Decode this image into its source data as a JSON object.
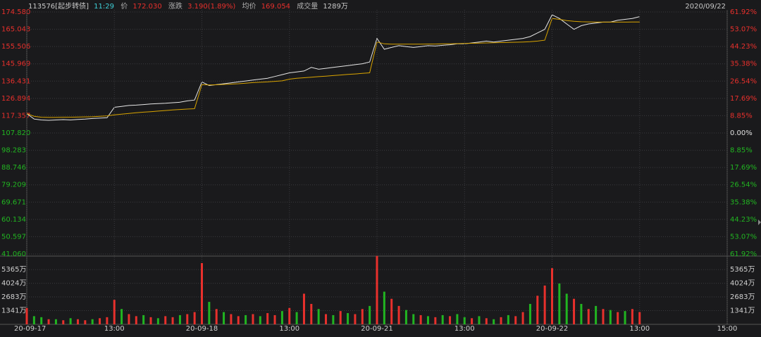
{
  "header": {
    "code": "113576[起步转债]",
    "time": "11:29",
    "price_label": "价",
    "price": "172.030",
    "change_label": "涨跌",
    "change": "3.190(1.89%)",
    "avg_label": "均价",
    "avg": "169.054",
    "volume_label": "成交量",
    "volume": "1289万",
    "date": "2020/09/22"
  },
  "chart_data": [
    {
      "type": "line",
      "xlim": [
        0,
        960
      ],
      "x": [
        0,
        10,
        20,
        30,
        40,
        50,
        60,
        70,
        80,
        90,
        100,
        110,
        120,
        130,
        140,
        150,
        160,
        170,
        180,
        190,
        200,
        210,
        220,
        230,
        240,
        250,
        260,
        270,
        280,
        290,
        300,
        310,
        320,
        330,
        340,
        350,
        360,
        370,
        380,
        390,
        400,
        410,
        420,
        430,
        440,
        450,
        460,
        470,
        480,
        490,
        500,
        510,
        520,
        530,
        540,
        550,
        560,
        570,
        580,
        590,
        600,
        610,
        620,
        630,
        640,
        650,
        660,
        670,
        680,
        690,
        700,
        710,
        720,
        730,
        740,
        750,
        760,
        770,
        780,
        790,
        800,
        810,
        820,
        830,
        840
      ],
      "series": [
        {
          "color": "#e6e6e6",
          "values": [
            118.5,
            115.5,
            115,
            114.8,
            115,
            115.2,
            115,
            115.3,
            115.5,
            115.8,
            116,
            116.2,
            122,
            122.5,
            123,
            123.2,
            123.5,
            123.8,
            124,
            124.2,
            124.5,
            124.8,
            125.5,
            126,
            136,
            134,
            134.5,
            135,
            135.5,
            136,
            136.5,
            137,
            137.5,
            138,
            139,
            140,
            141,
            141.5,
            142,
            144,
            143,
            143.5,
            144,
            144.5,
            145,
            145.5,
            146,
            147,
            160,
            154,
            155,
            156,
            155.5,
            155,
            155.5,
            156,
            155.8,
            156.2,
            156.5,
            157,
            157,
            157.5,
            158,
            158.5,
            158,
            158.5,
            159,
            159.5,
            160,
            161,
            163,
            165,
            173,
            171,
            168,
            165,
            167,
            168,
            168.5,
            169,
            169,
            170,
            170.5,
            171,
            172.03
          ]
        },
        {
          "color": "#d9a400",
          "values": [
            118.5,
            117,
            116.5,
            116.4,
            116.4,
            116.5,
            116.5,
            116.6,
            116.7,
            116.8,
            117,
            117.2,
            117.8,
            118.2,
            118.6,
            119,
            119.3,
            119.6,
            119.9,
            120.2,
            120.5,
            120.8,
            121,
            121.2,
            134.5,
            134.3,
            134.4,
            134.6,
            134.8,
            135,
            135.3,
            135.6,
            135.8,
            136,
            136.3,
            136.6,
            137.5,
            138,
            138.3,
            138.6,
            138.9,
            139.2,
            139.5,
            139.8,
            140.1,
            140.4,
            140.7,
            141,
            158,
            157,
            156.8,
            156.8,
            156.8,
            156.8,
            156.8,
            156.9,
            156.9,
            157,
            157,
            157.1,
            157.2,
            157.3,
            157.4,
            157.5,
            157.6,
            157.7,
            157.8,
            157.9,
            158,
            158.2,
            158.5,
            159,
            171,
            170.5,
            169.8,
            169.4,
            169.2,
            169.1,
            169,
            169,
            169,
            169,
            169,
            169.05,
            169.054
          ]
        }
      ],
      "ylim": [
        41.06,
        174.58
      ],
      "yticks": [
        {
          "value": 174.58,
          "label": "174.580"
        },
        165.043,
        155.506,
        145.969,
        136.431,
        126.894,
        117.357,
        {
          "value": 107.82,
          "label": "107.820"
        },
        98.283,
        88.746,
        79.209,
        69.671,
        60.134,
        50.597,
        {
          "value": 41.06,
          "label": "41.060"
        }
      ],
      "y2lim": [
        -61.92,
        61.92
      ],
      "y2ticks": [
        {
          "value": 61.92,
          "label": "61.92%"
        },
        {
          "value": 53.07,
          "label": "53.07%"
        },
        {
          "value": 44.23,
          "label": "44.23%"
        },
        {
          "value": 35.38,
          "label": "35.38%"
        },
        {
          "value": 26.54,
          "label": "26.54%"
        },
        {
          "value": 17.69,
          "label": "17.69%"
        },
        {
          "value": 8.85,
          "label": "8.85%"
        },
        {
          "value": 0,
          "label": "0.00%"
        },
        {
          "value": -8.85,
          "label": "8.85%"
        },
        {
          "value": -17.69,
          "label": "17.69%"
        },
        {
          "value": -26.54,
          "label": "26.54%"
        },
        {
          "value": -35.38,
          "label": "35.38%"
        },
        {
          "value": -44.23,
          "label": "44.23%"
        },
        {
          "value": -53.07,
          "label": "53.07%"
        },
        {
          "value": -61.92,
          "label": "61.92%"
        }
      ],
      "grid": true
    },
    {
      "type": "bar",
      "xlim": [
        0,
        960
      ],
      "x": [
        0,
        10,
        20,
        30,
        40,
        50,
        60,
        70,
        80,
        90,
        100,
        110,
        120,
        130,
        140,
        150,
        160,
        170,
        180,
        190,
        200,
        210,
        220,
        230,
        240,
        250,
        260,
        270,
        280,
        290,
        300,
        310,
        320,
        330,
        340,
        350,
        360,
        370,
        380,
        390,
        400,
        410,
        420,
        430,
        440,
        450,
        460,
        470,
        480,
        490,
        500,
        510,
        520,
        530,
        540,
        550,
        560,
        570,
        580,
        590,
        600,
        610,
        620,
        630,
        640,
        650,
        660,
        670,
        680,
        690,
        700,
        710,
        720,
        730,
        740,
        750,
        760,
        770,
        780,
        790,
        800,
        810,
        820,
        830,
        840
      ],
      "values": [
        1600,
        800,
        700,
        500,
        500,
        400,
        600,
        500,
        400,
        500,
        600,
        700,
        2400,
        1500,
        1000,
        800,
        900,
        700,
        600,
        800,
        700,
        900,
        1000,
        1200,
        6000,
        2200,
        1500,
        1200,
        1000,
        800,
        900,
        1000,
        800,
        1100,
        900,
        1300,
        1600,
        1200,
        3000,
        2000,
        1500,
        1000,
        900,
        1300,
        1100,
        1000,
        1500,
        1800,
        6700,
        3200,
        2500,
        1800,
        1400,
        1000,
        900,
        800,
        700,
        900,
        800,
        1000,
        700,
        600,
        800,
        600,
        500,
        700,
        900,
        800,
        1200,
        2000,
        2800,
        3800,
        5500,
        4000,
        3000,
        2500,
        2000,
        1500,
        1800,
        1500,
        1400,
        1200,
        1300,
        1500,
        1200
      ],
      "colors": [
        "#e8302c",
        "#21b521",
        "#21b521",
        "#e8302c",
        "#21b521",
        "#e8302c",
        "#21b521",
        "#e8302c",
        "#e8302c",
        "#21b521",
        "#e8302c",
        "#e8302c",
        "#e8302c",
        "#21b521",
        "#e8302c",
        "#e8302c",
        "#21b521",
        "#e8302c",
        "#21b521",
        "#e8302c",
        "#e8302c",
        "#21b521",
        "#e8302c",
        "#e8302c",
        "#e8302c",
        "#21b521",
        "#e8302c",
        "#21b521",
        "#e8302c",
        "#e8302c",
        "#21b521",
        "#e8302c",
        "#21b521",
        "#e8302c",
        "#e8302c",
        "#21b521",
        "#e8302c",
        "#21b521",
        "#e8302c",
        "#e8302c",
        "#21b521",
        "#e8302c",
        "#21b521",
        "#e8302c",
        "#21b521",
        "#e8302c",
        "#e8302c",
        "#21b521",
        "#e8302c",
        "#21b521",
        "#e8302c",
        "#e8302c",
        "#21b521",
        "#21b521",
        "#e8302c",
        "#21b521",
        "#e8302c",
        "#21b521",
        "#e8302c",
        "#21b521",
        "#21b521",
        "#e8302c",
        "#21b521",
        "#e8302c",
        "#21b521",
        "#e8302c",
        "#21b521",
        "#e8302c",
        "#e8302c",
        "#21b521",
        "#e8302c",
        "#e8302c",
        "#e8302c",
        "#21b521",
        "#21b521",
        "#e8302c",
        "#21b521",
        "#e8302c",
        "#21b521",
        "#e8302c",
        "#21b521",
        "#e8302c",
        "#21b521",
        "#e8302c",
        "#e8302c"
      ],
      "ylim": [
        0,
        6545
      ],
      "yticks": [
        {
          "value": 5365,
          "label": "5365万"
        },
        {
          "value": 4024,
          "label": "4024万"
        },
        {
          "value": 2683,
          "label": "2683万"
        },
        {
          "value": 1341,
          "label": "1341万"
        }
      ],
      "xticks": [
        {
          "value": 0,
          "label": "20-09-17"
        },
        {
          "value": 120,
          "label": "13:00"
        },
        {
          "value": 240,
          "label": "20-09-18"
        },
        {
          "value": 360,
          "label": "13:00"
        },
        {
          "value": 480,
          "label": "20-09-21"
        },
        {
          "value": 600,
          "label": "13:00"
        },
        {
          "value": 720,
          "label": "20-09-22"
        },
        {
          "value": 840,
          "label": "13:00"
        },
        {
          "value": 960,
          "label": "15:00"
        }
      ],
      "grid": true
    }
  ]
}
